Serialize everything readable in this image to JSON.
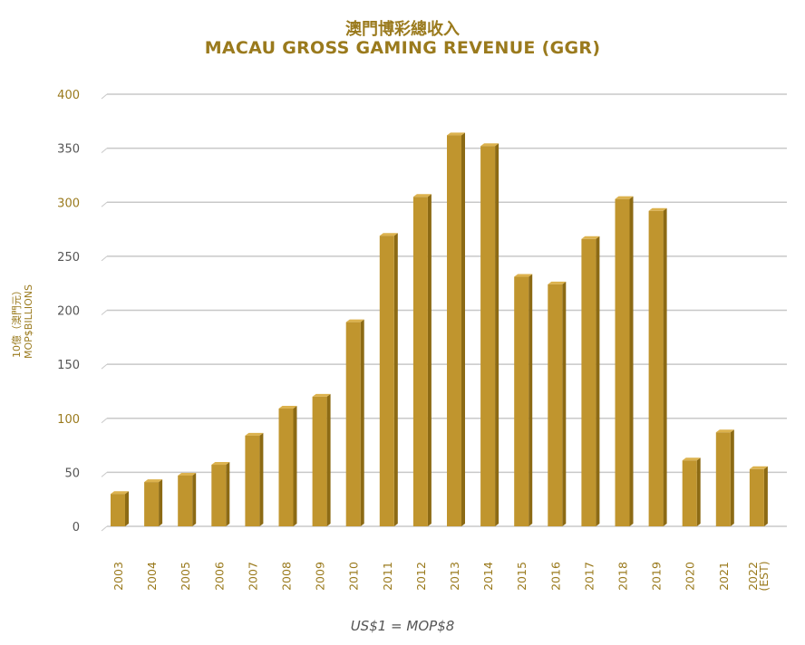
{
  "header": {
    "title_cn": "澳門博彩總收入",
    "title_en": "MACAU GROSS GAMING REVENUE (GGR)"
  },
  "footnote": "US$1 = MOP$8",
  "colors": {
    "bar_face": "#c0952e",
    "bar_side": "#8c6a14",
    "bar_top": "#dcb24e",
    "label": "#9a7a1d",
    "grid": "#c8c8c8"
  },
  "chart_data": {
    "type": "bar",
    "title": "澳門博彩總收入 MACAU GROSS GAMING REVENUE (GGR)",
    "ylabel_cn": "10億（澳門元）",
    "ylabel": "MOP$BILLIONS",
    "xlabel": "",
    "ylim": [
      0,
      400
    ],
    "yticks": [
      0,
      50,
      100,
      150,
      200,
      250,
      300,
      350,
      400
    ],
    "ytick_highlight": [
      100,
      300,
      400
    ],
    "grid": true,
    "categories": [
      "2003",
      "2004",
      "2005",
      "2006",
      "2007",
      "2008",
      "2009",
      "2010",
      "2011",
      "2012",
      "2013",
      "2014",
      "2015",
      "2016",
      "2017",
      "2018",
      "2019",
      "2020",
      "2021",
      "2022 (EST)"
    ],
    "values": [
      30,
      41,
      47,
      57,
      84,
      109,
      120,
      189,
      269,
      305,
      362,
      352,
      231,
      224,
      266,
      303,
      292,
      61,
      87,
      53
    ]
  }
}
